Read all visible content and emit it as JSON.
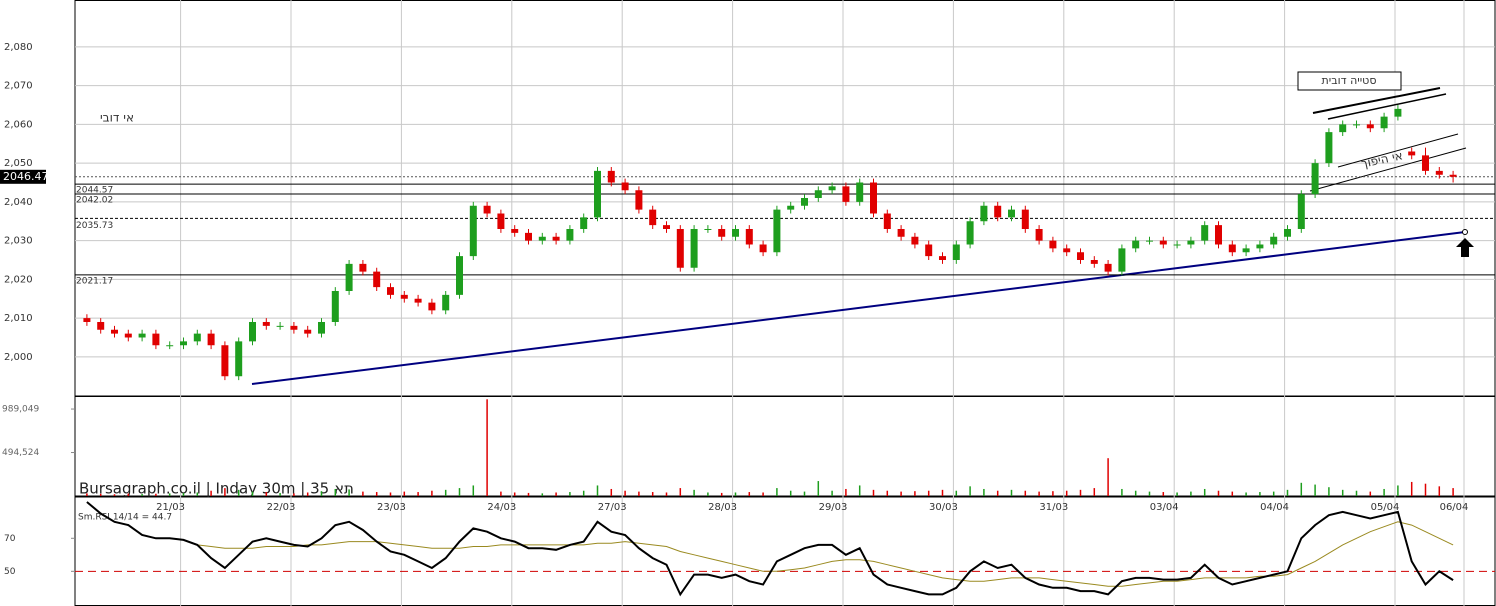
{
  "chart_data": {
    "type": "candlestick",
    "ylim": [
      1989.9,
      2092.1
    ],
    "yticks": [
      {
        "value": 2000,
        "label": "2,000"
      },
      {
        "value": 2010,
        "label": "2,010"
      },
      {
        "value": 2020,
        "label": "2,020"
      },
      {
        "value": 2030,
        "label": "2,030"
      },
      {
        "value": 2040,
        "label": "2,040"
      },
      {
        "value": 2050,
        "label": "2,050"
      },
      {
        "value": 2060,
        "label": "2,060"
      },
      {
        "value": 2070,
        "label": "2,070"
      },
      {
        "value": 2080,
        "label": "2,080"
      }
    ],
    "xlim": [
      -0.5,
      99.5
    ],
    "xticks": [
      {
        "value": 6,
        "label": "21/03"
      },
      {
        "value": 14,
        "label": "22/03"
      },
      {
        "value": 22,
        "label": "23/03"
      },
      {
        "value": 30,
        "label": "24/03"
      },
      {
        "value": 38,
        "label": "27/03"
      },
      {
        "value": 46,
        "label": "28/03"
      },
      {
        "value": 54,
        "label": "29/03"
      },
      {
        "value": 62,
        "label": "30/03"
      },
      {
        "value": 70,
        "label": "31/03"
      },
      {
        "value": 78,
        "label": "03/04"
      },
      {
        "value": 86,
        "label": "04/04"
      },
      {
        "value": 94,
        "label": "05/04"
      },
      {
        "value": 99,
        "label": "06/04"
      }
    ],
    "grid": true,
    "up_color": "#1e9e1e",
    "down_color": "#e00000",
    "open": [
      2010,
      2009,
      2007,
      2006,
      2005,
      2006,
      2003,
      2003,
      2004,
      2006,
      2003,
      1995,
      2004,
      2009,
      2008,
      2008,
      2007,
      2006,
      2009,
      2017,
      2024,
      2022,
      2018,
      2016,
      2015,
      2014,
      2012,
      2016,
      2026,
      2039,
      2037,
      2033,
      2032,
      2030,
      2031,
      2030,
      2033,
      2036,
      2048,
      2045,
      2043,
      2038,
      2034,
      2033,
      2023,
      2033,
      2033,
      2031,
      2033,
      2029,
      2027,
      2038,
      2039,
      2041,
      2043,
      2044,
      2040,
      2045,
      2037,
      2033,
      2031,
      2029,
      2026,
      2025,
      2029,
      2035,
      2039,
      2036,
      2038,
      2033,
      2030,
      2028,
      2027,
      2025,
      2024,
      2022,
      2028,
      2030,
      2030,
      2029,
      2029,
      2030,
      2034,
      2029,
      2027,
      2028,
      2029,
      2031,
      2033,
      2042,
      2050,
      2058,
      2060,
      2060,
      2059,
      2062,
      2053,
      2052,
      2048,
      2047
    ],
    "high": [
      2011,
      2010,
      2008,
      2007,
      2007,
      2007,
      2004,
      2005,
      2007,
      2007,
      2004,
      2005,
      2010,
      2010,
      2009,
      2009,
      2008,
      2010,
      2018,
      2025,
      2025,
      2023,
      2019,
      2017,
      2016,
      2015,
      2017,
      2027,
      2040,
      2040,
      2038,
      2034,
      2033,
      2032,
      2032,
      2034,
      2037,
      2049,
      2049,
      2046,
      2044,
      2039,
      2035,
      2034,
      2034,
      2034,
      2034,
      2034,
      2034,
      2030,
      2039,
      2040,
      2042,
      2044,
      2045,
      2045,
      2046,
      2046,
      2038,
      2034,
      2032,
      2030,
      2027,
      2030,
      2036,
      2040,
      2040,
      2039,
      2039,
      2034,
      2031,
      2029,
      2028,
      2026,
      2025,
      2029,
      2031,
      2031,
      2031,
      2030,
      2031,
      2035,
      2035,
      2030,
      2029,
      2030,
      2032,
      2034,
      2043,
      2051,
      2059,
      2061,
      2061,
      2061,
      2063,
      2065,
      2054,
      2054,
      2049,
      2048
    ],
    "low": [
      2008,
      2006,
      2005,
      2004,
      2004,
      2002,
      2002,
      2002,
      2003,
      2002,
      1994,
      1994,
      2003,
      2007,
      2007,
      2006,
      2005,
      2005,
      2008,
      2016,
      2021,
      2017,
      2015,
      2014,
      2013,
      2011,
      2011,
      2015,
      2025,
      2036,
      2032,
      2031,
      2029,
      2029,
      2029,
      2029,
      2032,
      2035,
      2044,
      2042,
      2037,
      2033,
      2032,
      2022,
      2022,
      2032,
      2030,
      2030,
      2028,
      2026,
      2026,
      2037,
      2038,
      2040,
      2042,
      2039,
      2039,
      2036,
      2032,
      2030,
      2028,
      2025,
      2024,
      2024,
      2028,
      2034,
      2035,
      2035,
      2032,
      2029,
      2027,
      2026,
      2024,
      2023,
      2021,
      2021,
      2027,
      2029,
      2028,
      2028,
      2028,
      2029,
      2028,
      2026,
      2026,
      2027,
      2028,
      2030,
      2032,
      2041,
      2049,
      2057,
      2059,
      2058,
      2058,
      2061,
      2051,
      2047,
      2046,
      2045
    ],
    "close": [
      2009,
      2007,
      2006,
      2005,
      2006,
      2003,
      2003,
      2004,
      2006,
      2003,
      1995,
      2004,
      2009,
      2008,
      2008,
      2007,
      2006,
      2009,
      2017,
      2024,
      2022,
      2018,
      2016,
      2015,
      2014,
      2012,
      2016,
      2026,
      2039,
      2037,
      2033,
      2032,
      2030,
      2031,
      2030,
      2033,
      2036,
      2048,
      2045,
      2043,
      2038,
      2034,
      2033,
      2023,
      2033,
      2033,
      2031,
      2033,
      2029,
      2027,
      2038,
      2039,
      2041,
      2043,
      2044,
      2040,
      2045,
      2037,
      2033,
      2031,
      2029,
      2026,
      2025,
      2029,
      2035,
      2039,
      2036,
      2038,
      2033,
      2030,
      2028,
      2027,
      2025,
      2024,
      2022,
      2028,
      2030,
      2030,
      2029,
      2029,
      2030,
      2034,
      2029,
      2027,
      2028,
      2029,
      2031,
      2033,
      2042,
      2050,
      2058,
      2060,
      2060,
      2059,
      2062,
      2064,
      2052,
      2048,
      2047,
      2046.47
    ],
    "last_price": 2046.47,
    "levels": [
      2044.57,
      2042.02,
      2021.17
    ],
    "dashed_levels": [
      2035.73
    ],
    "annotations": [
      "אי דובי",
      "סטייה דובית",
      "אי היפוך"
    ],
    "watermark": "Bursagraph.co.il | Inday 30m | 35 תא",
    "volume": {
      "ylim": [
        0,
        1137400
      ],
      "yticks": [
        {
          "value": 494524,
          "label": "494,524"
        },
        {
          "value": 989049,
          "label": "989,049"
        }
      ],
      "values": [
        30000,
        25000,
        20000,
        28000,
        22000,
        26000,
        30000,
        35000,
        40000,
        60000,
        90000,
        70000,
        50000,
        45000,
        35000,
        30000,
        40000,
        55000,
        80000,
        75000,
        50000,
        45000,
        40000,
        50000,
        45000,
        60000,
        70000,
        90000,
        120000,
        1100000,
        50000,
        40000,
        35000,
        30000,
        40000,
        45000,
        60000,
        120000,
        80000,
        60000,
        50000,
        45000,
        40000,
        90000,
        70000,
        40000,
        35000,
        40000,
        45000,
        40000,
        90000,
        60000,
        50000,
        170000,
        60000,
        80000,
        120000,
        70000,
        60000,
        50000,
        55000,
        60000,
        70000,
        60000,
        110000,
        80000,
        60000,
        70000,
        60000,
        50000,
        55000,
        60000,
        70000,
        90000,
        430000,
        80000,
        60000,
        50000,
        45000,
        40000,
        50000,
        80000,
        60000,
        50000,
        40000,
        45000,
        50000,
        70000,
        150000,
        130000,
        100000,
        70000,
        60000,
        50000,
        80000,
        120000,
        160000,
        140000,
        110000,
        90000
      ]
    },
    "rsi": {
      "label": "Sm.RSI 14/14 = 44.7",
      "ylim": [
        29,
        95
      ],
      "yticks": [
        50,
        70
      ],
      "reference": 50,
      "color": "#000000",
      "ma_color": "#9a8a20",
      "values": [
        92,
        85,
        80,
        78,
        72,
        70,
        70,
        69,
        66,
        58,
        52,
        60,
        68,
        70,
        68,
        66,
        65,
        70,
        78,
        80,
        75,
        68,
        62,
        60,
        56,
        52,
        58,
        68,
        76,
        74,
        70,
        68,
        64,
        64,
        63,
        66,
        68,
        80,
        74,
        72,
        64,
        58,
        54,
        36,
        48,
        48,
        46,
        48,
        44,
        42,
        56,
        60,
        64,
        66,
        66,
        60,
        64,
        48,
        42,
        40,
        38,
        36,
        36,
        40,
        50,
        56,
        52,
        54,
        46,
        42,
        40,
        40,
        38,
        38,
        36,
        44,
        46,
        46,
        45,
        45,
        46,
        54,
        46,
        42,
        44,
        46,
        48,
        50,
        70,
        78,
        84,
        86,
        84,
        82,
        84,
        86,
        56,
        42,
        50,
        44.7
      ],
      "ma": [
        null,
        null,
        null,
        null,
        null,
        null,
        null,
        null,
        66,
        65,
        64,
        64,
        64,
        65,
        65,
        65,
        66,
        66,
        67,
        68,
        68,
        68,
        67,
        66,
        65,
        64,
        64,
        64,
        65,
        65,
        66,
        66,
        66,
        66,
        66,
        66,
        66,
        67,
        67,
        68,
        67,
        66,
        65,
        62,
        60,
        58,
        56,
        54,
        52,
        50,
        50,
        51,
        52,
        54,
        56,
        57,
        57,
        56,
        54,
        52,
        50,
        48,
        46,
        45,
        44,
        44,
        45,
        46,
        46,
        46,
        45,
        44,
        43,
        42,
        41,
        41,
        42,
        43,
        44,
        44,
        45,
        46,
        46,
        46,
        46,
        47,
        47,
        48,
        52,
        56,
        61,
        66,
        70,
        74,
        77,
        80,
        78,
        74,
        70,
        66
      ]
    }
  }
}
